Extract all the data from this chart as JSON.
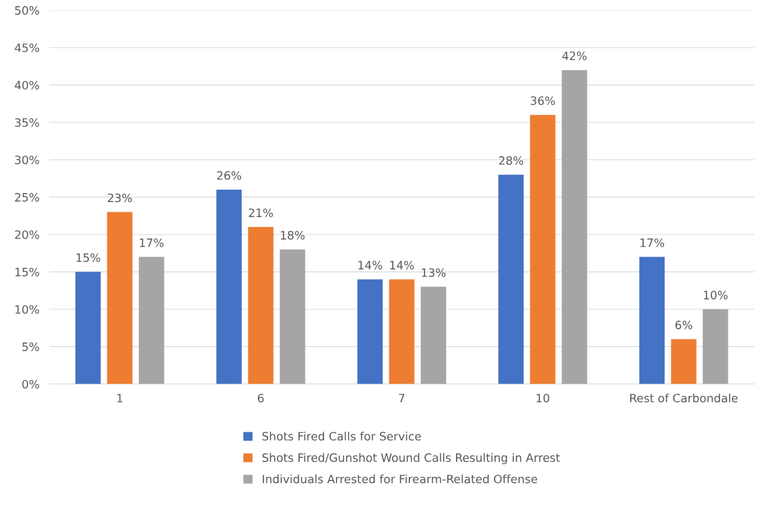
{
  "chart_data": {
    "type": "bar",
    "categories": [
      "1",
      "6",
      "7",
      "10",
      "Rest of Carbondale"
    ],
    "series": [
      {
        "name": "Shots Fired Calls for Service",
        "color": "#4472c4",
        "values": [
          15,
          26,
          14,
          28,
          17
        ],
        "value_labels": [
          "15%",
          "26%",
          "14%",
          "28%",
          "17%"
        ]
      },
      {
        "name": "Shots Fired/Gunshot Wound Calls Resulting in Arrest",
        "color": "#ed7d31",
        "values": [
          23,
          21,
          14,
          36,
          6
        ],
        "value_labels": [
          "23%",
          "21%",
          "14%",
          "36%",
          "6%"
        ]
      },
      {
        "name": "Individuals Arrested for Firearm-Related Offense",
        "color": "#a5a5a5",
        "values": [
          17,
          18,
          13,
          42,
          10
        ],
        "value_labels": [
          "17%",
          "18%",
          "13%",
          "42%",
          "10%"
        ]
      }
    ],
    "ylim": [
      0,
      50
    ],
    "yticks": [
      {
        "value": 0,
        "label": "0%"
      },
      {
        "value": 5,
        "label": "5%"
      },
      {
        "value": 10,
        "label": "10%"
      },
      {
        "value": 15,
        "label": "15%"
      },
      {
        "value": 20,
        "label": "20%"
      },
      {
        "value": 25,
        "label": "25%"
      },
      {
        "value": 30,
        "label": "30%"
      },
      {
        "value": 35,
        "label": "35%"
      },
      {
        "value": 40,
        "label": "40%"
      },
      {
        "value": 45,
        "label": "45%"
      },
      {
        "value": 50,
        "label": "50%"
      }
    ],
    "grid": "y",
    "legend": "bottom"
  }
}
